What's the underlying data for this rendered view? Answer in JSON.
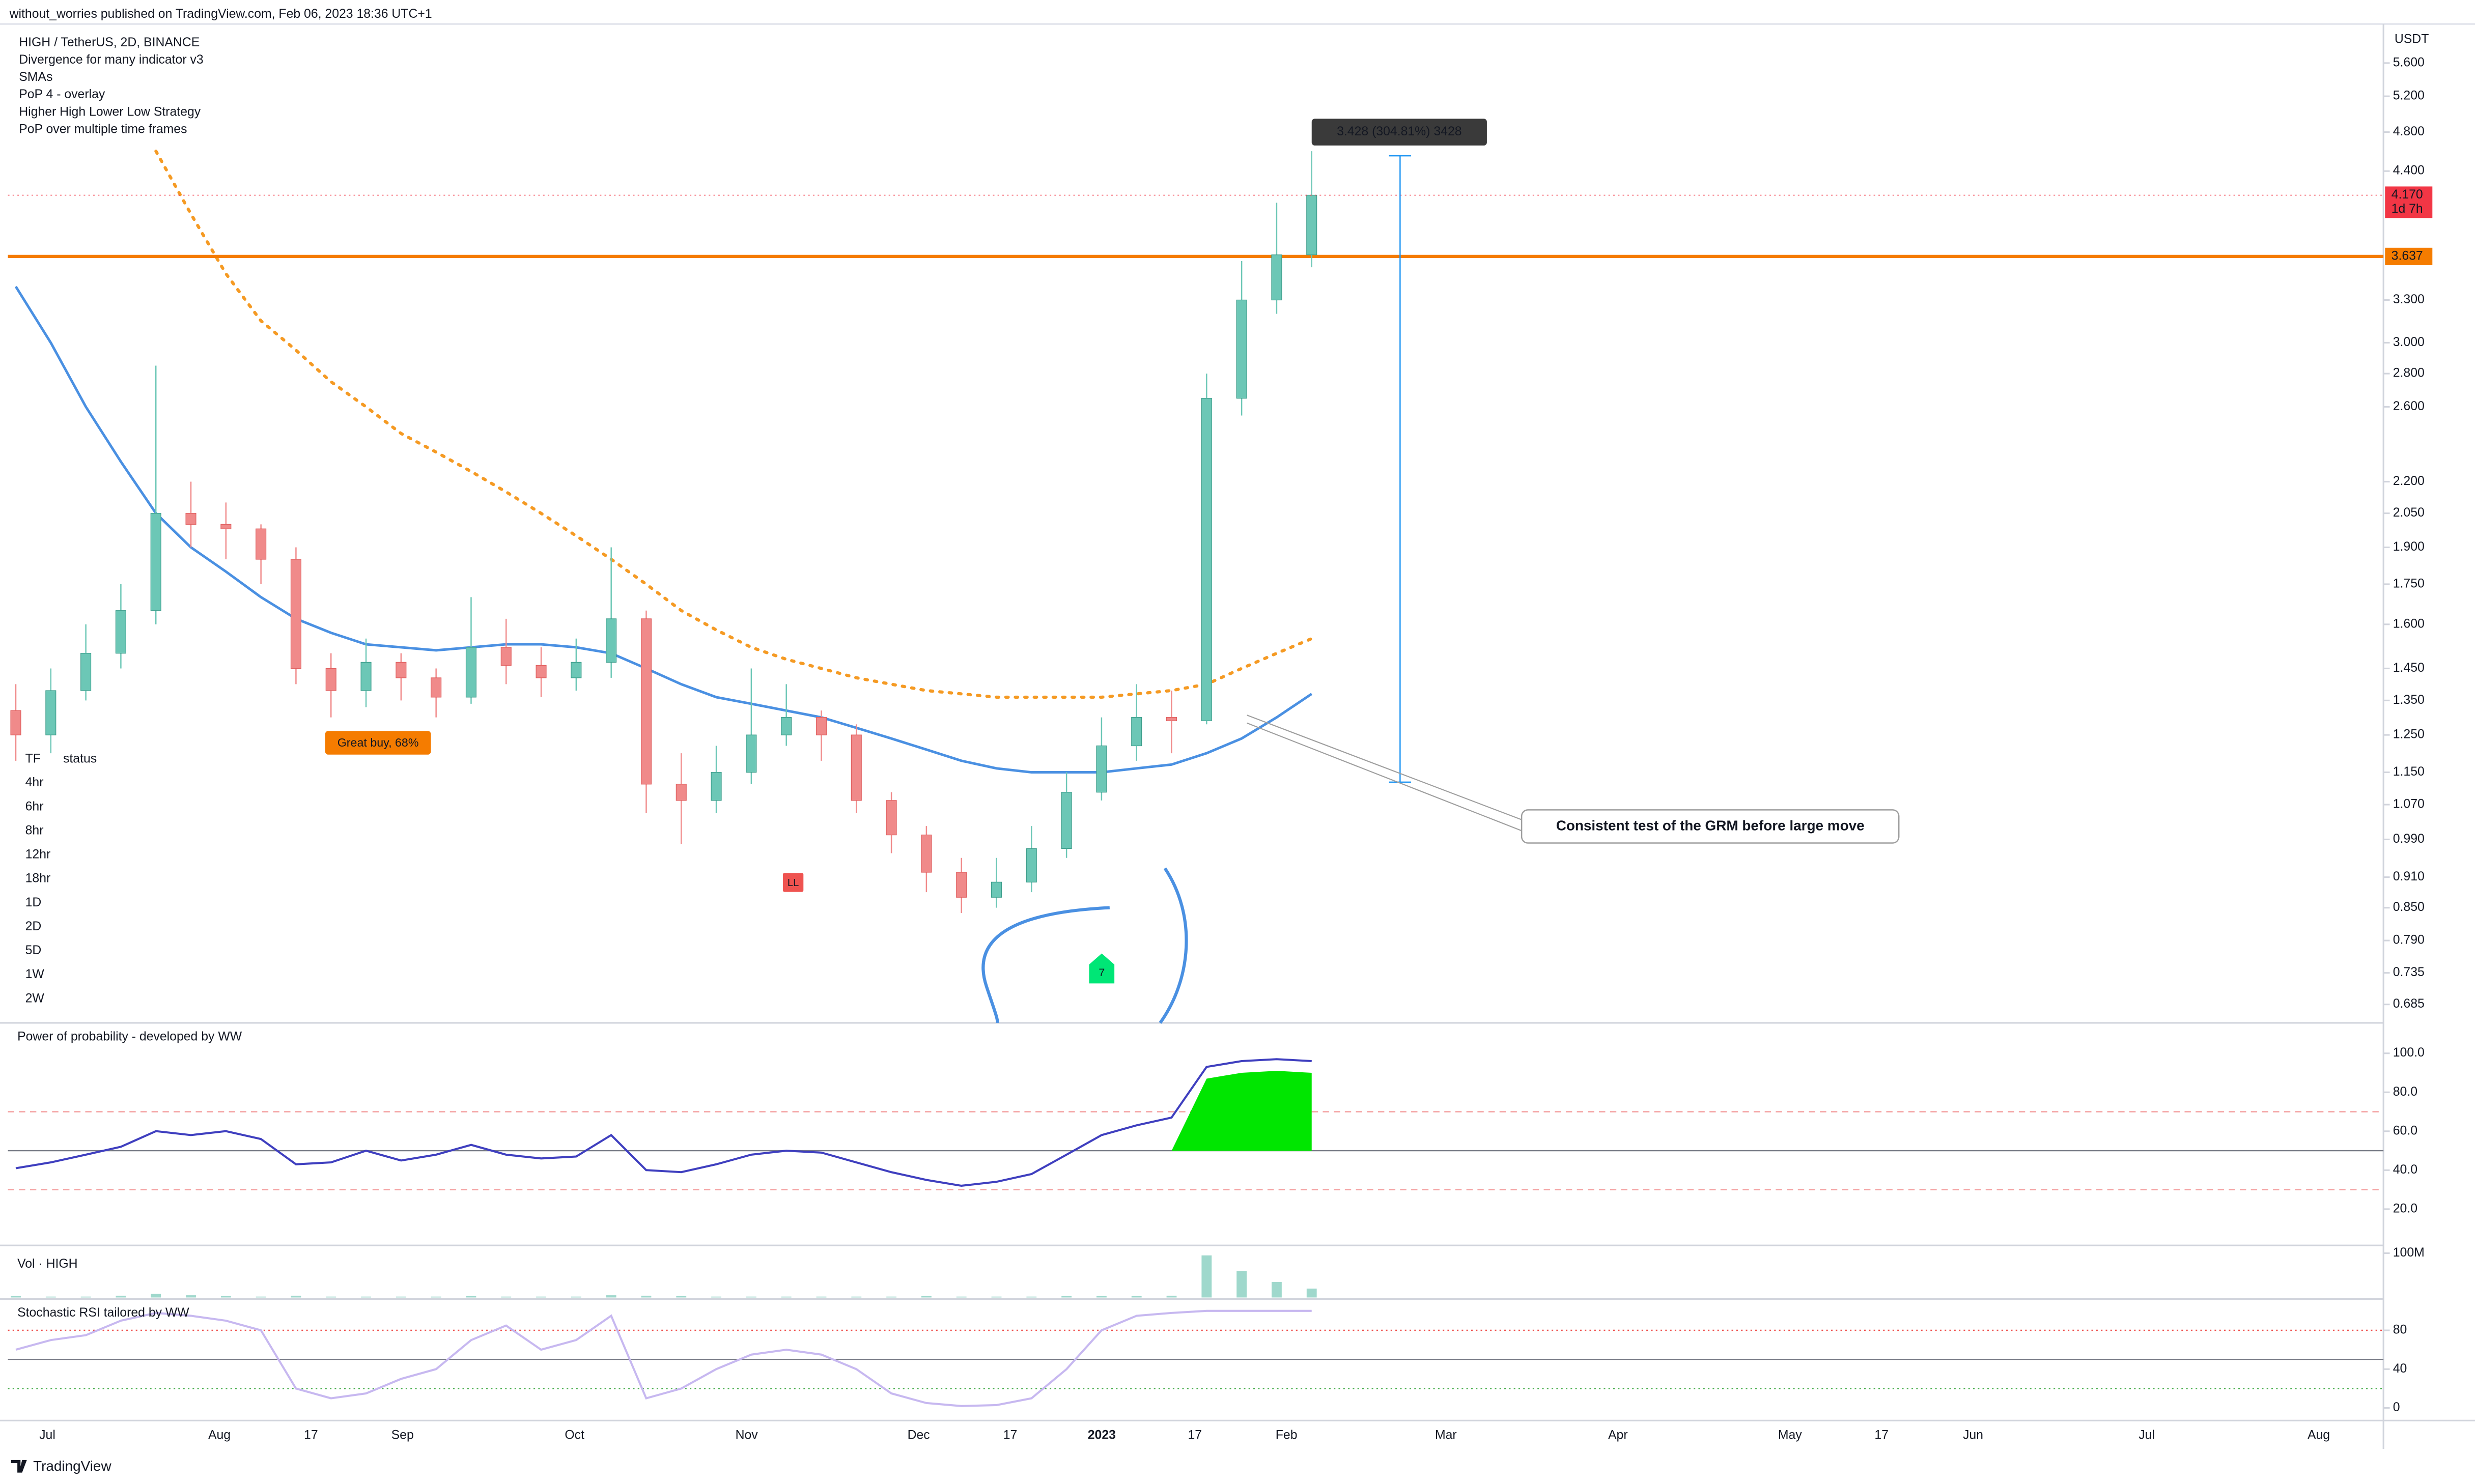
{
  "header": {
    "publisher": "without_worries published on TradingView.com, Feb 06, 2023 18:36 UTC+1",
    "brand": "TradingView"
  },
  "chart_data": [
    {
      "type": "candlestick",
      "legend": [
        "HIGH / TetherUS, 2D, BINANCE",
        "Divergence for many indicator v3",
        "SMAs",
        "PoP 4 - overlay",
        "Higher High Lower Low Strategy",
        "PoP over multiple time frames"
      ],
      "unit": "USDT",
      "log_scale": true,
      "ylim": [
        0.662,
        6.11
      ],
      "yticks": [
        {
          "value": 5.6,
          "label": "5.600"
        },
        {
          "value": 5.2,
          "label": "5.200"
        },
        {
          "value": 4.8,
          "label": "4.800"
        },
        {
          "value": 4.4,
          "label": "4.400"
        },
        {
          "value": 3.3,
          "label": "3.300"
        },
        {
          "value": 3,
          "label": "3.000"
        },
        {
          "value": 2.8,
          "label": "2.800"
        },
        {
          "value": 2.6,
          "label": "2.600"
        },
        {
          "value": 2.2,
          "label": "2.200"
        },
        {
          "value": 2.05,
          "label": "2.050"
        },
        {
          "value": 1.9,
          "label": "1.900"
        },
        {
          "value": 1.75,
          "label": "1.750"
        },
        {
          "value": 1.6,
          "label": "1.600"
        },
        {
          "value": 1.45,
          "label": "1.450"
        },
        {
          "value": 1.35,
          "label": "1.350"
        },
        {
          "value": 1.25,
          "label": "1.250"
        },
        {
          "value": 1.15,
          "label": "1.150"
        },
        {
          "value": 1.07,
          "label": "1.070"
        },
        {
          "value": 0.99,
          "label": "0.990"
        },
        {
          "value": 0.91,
          "label": "0.910"
        },
        {
          "value": 0.85,
          "label": "0.850"
        },
        {
          "value": 0.79,
          "label": "0.790"
        },
        {
          "value": 0.735,
          "label": "0.735"
        },
        {
          "value": 0.685,
          "label": "0.685"
        }
      ],
      "xticks": [
        {
          "label": "Jul"
        },
        {
          "label": "Aug"
        },
        {
          "label": "17"
        },
        {
          "label": "Sep"
        },
        {
          "label": "Oct"
        },
        {
          "label": "Nov"
        },
        {
          "label": "Dec"
        },
        {
          "label": "17"
        },
        {
          "label": "2023"
        },
        {
          "label": "17"
        },
        {
          "label": "Feb"
        },
        {
          "label": "Mar"
        },
        {
          "label": "Apr"
        },
        {
          "label": "May"
        },
        {
          "label": "17"
        },
        {
          "label": "Jun"
        },
        {
          "label": "Jul"
        },
        {
          "label": "Aug"
        }
      ],
      "up_color": "#6cc7b6",
      "down_color": "#f08a8a",
      "open": [
        1.32,
        1.25,
        1.38,
        1.5,
        1.65,
        2.05,
        2.0,
        1.98,
        1.85,
        1.45,
        1.38,
        1.47,
        1.42,
        1.36,
        1.52,
        1.46,
        1.42,
        1.47,
        1.62,
        1.12,
        1.08,
        1.15,
        1.25,
        1.3,
        1.25,
        1.08,
        1.0,
        0.92,
        0.87,
        0.9,
        0.97,
        1.1,
        1.22,
        1.3,
        1.29,
        2.65,
        3.3,
        3.65
      ],
      "high": [
        1.4,
        1.45,
        1.6,
        1.75,
        2.85,
        2.2,
        2.1,
        2.0,
        1.9,
        1.5,
        1.55,
        1.5,
        1.45,
        1.7,
        1.62,
        1.52,
        1.55,
        1.9,
        1.65,
        1.2,
        1.22,
        1.45,
        1.4,
        1.32,
        1.28,
        1.1,
        1.02,
        0.95,
        0.95,
        1.02,
        1.15,
        1.3,
        1.4,
        1.38,
        2.8,
        3.6,
        4.1,
        4.6
      ],
      "low": [
        1.18,
        1.2,
        1.35,
        1.45,
        1.6,
        1.9,
        1.85,
        1.75,
        1.4,
        1.3,
        1.33,
        1.35,
        1.3,
        1.34,
        1.4,
        1.36,
        1.38,
        1.42,
        1.05,
        0.98,
        1.05,
        1.12,
        1.22,
        1.18,
        1.05,
        0.96,
        0.88,
        0.84,
        0.85,
        0.88,
        0.95,
        1.08,
        1.18,
        1.2,
        1.28,
        2.55,
        3.2,
        3.55
      ],
      "close": [
        1.25,
        1.38,
        1.5,
        1.65,
        2.05,
        2.0,
        1.98,
        1.85,
        1.45,
        1.38,
        1.47,
        1.42,
        1.36,
        1.52,
        1.46,
        1.42,
        1.47,
        1.62,
        1.12,
        1.08,
        1.15,
        1.25,
        1.3,
        1.25,
        1.08,
        1.0,
        0.92,
        0.87,
        0.9,
        0.97,
        1.1,
        1.22,
        1.3,
        1.29,
        2.65,
        3.3,
        3.65,
        4.17
      ],
      "overlays": [
        {
          "color": "#4a90e2",
          "dashed": false,
          "values": [
            3.4,
            3.0,
            2.6,
            2.3,
            2.05,
            1.9,
            1.8,
            1.7,
            1.62,
            1.57,
            1.53,
            1.52,
            1.51,
            1.52,
            1.53,
            1.53,
            1.52,
            1.5,
            1.45,
            1.4,
            1.36,
            1.34,
            1.32,
            1.3,
            1.27,
            1.24,
            1.21,
            1.18,
            1.16,
            1.15,
            1.15,
            1.15,
            1.16,
            1.17,
            1.2,
            1.24,
            1.3,
            1.37
          ]
        },
        {
          "color": "#f59a23",
          "dashed": true,
          "values": [
            null,
            null,
            null,
            null,
            4.6,
            4.0,
            3.5,
            3.15,
            2.95,
            2.75,
            2.6,
            2.45,
            2.35,
            2.25,
            2.15,
            2.05,
            1.95,
            1.85,
            1.75,
            1.65,
            1.58,
            1.52,
            1.48,
            1.45,
            1.42,
            1.4,
            1.38,
            1.37,
            1.36,
            1.36,
            1.36,
            1.36,
            1.37,
            1.38,
            1.4,
            1.45,
            1.5,
            1.55
          ]
        }
      ],
      "level": {
        "value": 3.637,
        "label": "3.637",
        "color": "#f57c00"
      },
      "last_price": {
        "value": 4.17,
        "label": "4.170",
        "countdown": "1d 7h"
      },
      "measure": {
        "from": 1.125,
        "to": 4.553,
        "label": "3.428 (304.81%) 3428"
      },
      "callout": "Consistent test of the GRM before large move",
      "badges": {
        "great_buy": "Great buy,  68%",
        "ll": "LL",
        "signal": "7"
      },
      "status_table": {
        "header": [
          "TF",
          "status"
        ],
        "rows": [
          "4hr",
          "6hr",
          "8hr",
          "12hr",
          "18hr",
          "1D",
          "2D",
          "5D",
          "1W",
          "2W"
        ]
      }
    },
    {
      "type": "line",
      "title": "Power of probability - developed by WW",
      "ylim": [
        3,
        114
      ],
      "yticks": [
        {
          "value": 100,
          "label": "100.0"
        },
        {
          "value": 80,
          "label": "80.0"
        },
        {
          "value": 60,
          "label": "60.0"
        },
        {
          "value": 40,
          "label": "40.0"
        },
        {
          "value": 20,
          "label": "20.0"
        }
      ],
      "hlines": [
        70,
        50,
        30
      ],
      "color": "#3f3fbf",
      "values": [
        41,
        44,
        48,
        52,
        60,
        58,
        60,
        56,
        43,
        44,
        50,
        45,
        48,
        53,
        48,
        46,
        47,
        58,
        40,
        39,
        43,
        48,
        50,
        49,
        44,
        39,
        35,
        32,
        34,
        38,
        48,
        58,
        63,
        67,
        93,
        96,
        97,
        96
      ]
    },
    {
      "type": "bar",
      "title": "Vol · HIGH",
      "ylim": [
        0,
        114000000
      ],
      "yticks": [
        {
          "value": 100000000,
          "label": "100M"
        }
      ],
      "color": "#9fd8cc",
      "values": [
        3000000,
        2000000,
        2000000,
        4000000,
        8000000,
        5000000,
        3000000,
        2000000,
        4000000,
        2000000,
        2000000,
        2000000,
        2000000,
        3000000,
        2000000,
        2000000,
        2000000,
        5000000,
        4000000,
        3000000,
        2000000,
        2000000,
        2000000,
        2000000,
        2000000,
        2000000,
        3000000,
        2000000,
        2000000,
        2000000,
        3000000,
        3000000,
        3000000,
        4000000,
        95000000,
        60000000,
        35000000,
        20000000
      ]
    },
    {
      "type": "line",
      "title": "Stochastic RSI tailored by WW",
      "ylim": [
        -13,
        109
      ],
      "yticks": [
        80,
        40,
        0
      ],
      "hlines": [
        80,
        20
      ],
      "color": "#c7b8f0",
      "values": [
        60,
        70,
        75,
        90,
        98,
        95,
        90,
        80,
        20,
        10,
        15,
        30,
        40,
        70,
        85,
        60,
        70,
        95,
        10,
        20,
        40,
        55,
        60,
        55,
        40,
        15,
        5,
        2,
        3,
        10,
        40,
        80,
        95,
        98,
        100,
        100,
        100,
        100
      ]
    }
  ]
}
